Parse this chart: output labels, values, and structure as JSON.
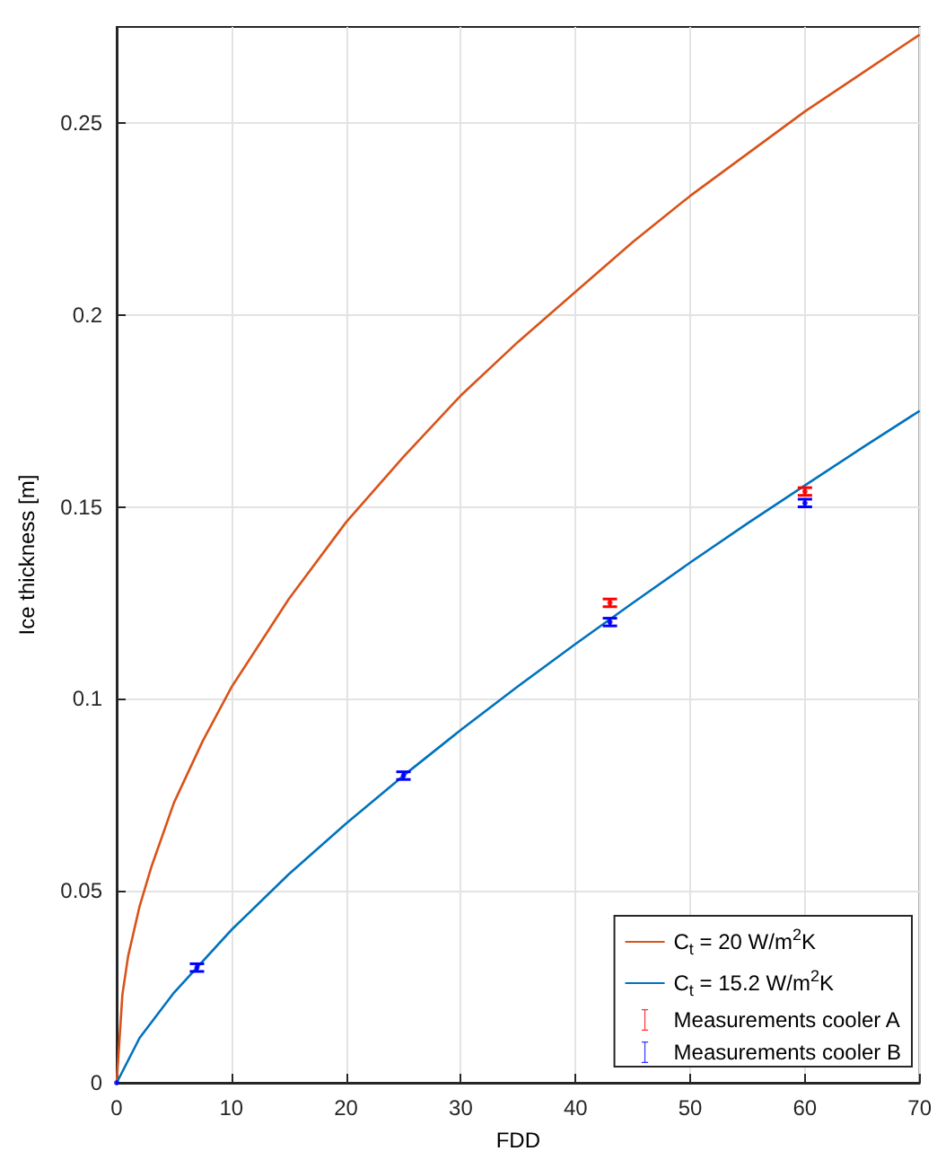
{
  "chart_data": {
    "type": "line",
    "xlabel": "FDD",
    "ylabel": "Ice thickness [m]",
    "xlim": [
      0,
      70
    ],
    "ylim": [
      0,
      0.275
    ],
    "xticks": [
      0,
      10,
      20,
      30,
      40,
      50,
      60,
      70
    ],
    "yticks": [
      0,
      0.05,
      0.1,
      0.15,
      0.2,
      0.25
    ],
    "grid": true,
    "legend": "bottom right",
    "series": [
      {
        "name": "C$_{t}$ = 20 W/m$^{2}$K",
        "color": "#d95319",
        "x": [
          0,
          0.5,
          1,
          2,
          3,
          5,
          7.5,
          10,
          15,
          20,
          25,
          30,
          35,
          40,
          45,
          50,
          55,
          60,
          65,
          70
        ],
        "values": [
          0,
          0.023,
          0.033,
          0.046,
          0.056,
          0.073,
          0.089,
          0.103,
          0.126,
          0.146,
          0.163,
          0.179,
          0.193,
          0.206,
          0.219,
          0.231,
          0.242,
          0.253,
          0.263,
          0.273
        ]
      },
      {
        "name": "C$_{t}$ = 15.2 W/m$^{2}$K",
        "color": "#0072bd",
        "x": [
          0,
          2,
          5,
          10,
          15,
          20,
          25,
          30,
          35,
          40,
          45,
          50,
          55,
          60,
          65,
          70
        ],
        "values": [
          0,
          0.0117,
          0.0235,
          0.0398,
          0.0543,
          0.0675,
          0.08,
          0.0919,
          0.1033,
          0.1143,
          0.125,
          0.1355,
          0.1457,
          0.1556,
          0.1654,
          0.175
        ]
      },
      {
        "name": "Measurements cooler A",
        "type": "scatter",
        "color": "#ff0000",
        "x": [
          43,
          60
        ],
        "values": [
          0.125,
          0.154
        ],
        "errors": [
          0.001,
          0.001
        ]
      },
      {
        "name": "Measurements cooler B",
        "type": "scatter",
        "color": "#0000ff",
        "x": [
          0,
          7,
          25,
          43,
          60
        ],
        "values": [
          0,
          0.03,
          0.08,
          0.12,
          0.151
        ],
        "errors": [
          null,
          0.001,
          0.001,
          0.001,
          0.001
        ]
      }
    ]
  }
}
